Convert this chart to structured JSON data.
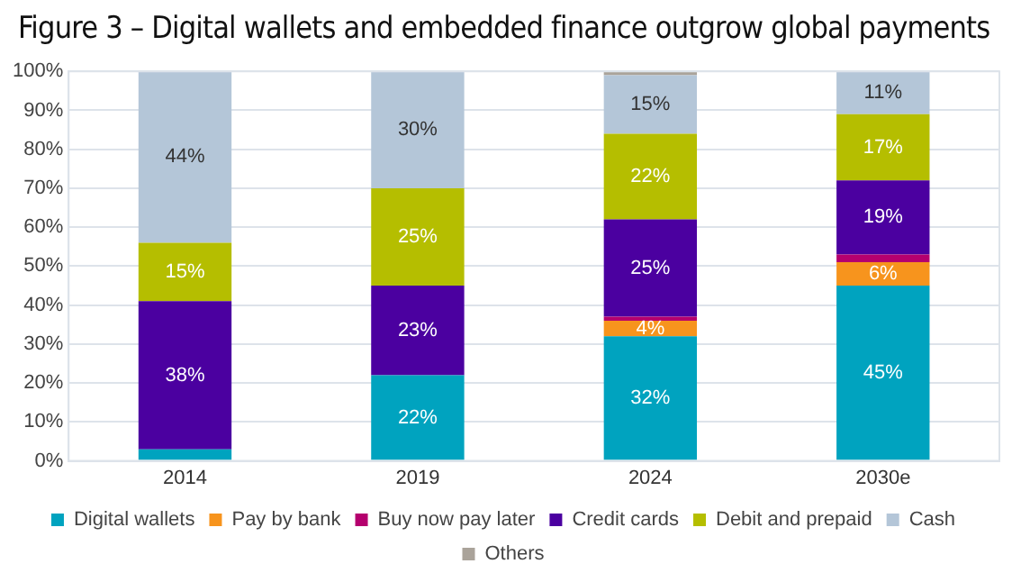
{
  "chart_data": {
    "type": "bar",
    "stacked": true,
    "title": "Figure 3 – Digital wallets and embedded finance outgrow global payments",
    "categories": [
      "2014",
      "2019",
      "2024",
      "2030e"
    ],
    "series": [
      {
        "name": "Digital wallets",
        "color": "#00a3bf",
        "values": [
          3,
          22,
          32,
          45
        ],
        "value_labels": [
          null,
          "22%",
          "32%",
          "45%"
        ]
      },
      {
        "name": "Pay by bank",
        "color": "#f7941d",
        "values": [
          0,
          0,
          4,
          6
        ],
        "value_labels": [
          null,
          null,
          "4%",
          "6%"
        ]
      },
      {
        "name": "Buy now pay later",
        "color": "#b5006e",
        "values": [
          0,
          0,
          1,
          2
        ],
        "value_labels": [
          null,
          null,
          null,
          null
        ]
      },
      {
        "name": "Credit cards",
        "color": "#4b00a0",
        "values": [
          38,
          23,
          25,
          19
        ],
        "value_labels": [
          "38%",
          "23%",
          "25%",
          "19%"
        ]
      },
      {
        "name": "Debit and prepaid",
        "color": "#b5be00",
        "values": [
          15,
          25,
          22,
          17
        ],
        "value_labels": [
          "15%",
          "25%",
          "22%",
          "17%"
        ]
      },
      {
        "name": "Cash",
        "color": "#b4c6d8",
        "values": [
          44,
          30,
          15,
          11
        ],
        "value_labels": [
          "44%",
          "30%",
          "15%",
          "11%"
        ]
      },
      {
        "name": "Others",
        "color": "#aaa39a",
        "values": [
          0,
          0,
          1,
          0
        ],
        "value_labels": [
          null,
          null,
          null,
          null
        ]
      }
    ],
    "ylim": [
      0,
      100
    ],
    "yticks": [
      {
        "value": 0,
        "label": "0%"
      },
      {
        "value": 10,
        "label": "10%"
      },
      {
        "value": 20,
        "label": "20%"
      },
      {
        "value": 30,
        "label": "30%"
      },
      {
        "value": 40,
        "label": "40%"
      },
      {
        "value": 50,
        "label": "50%"
      },
      {
        "value": 60,
        "label": "60%"
      },
      {
        "value": 70,
        "label": "70%"
      },
      {
        "value": 80,
        "label": "80%"
      },
      {
        "value": 90,
        "label": "90%"
      },
      {
        "value": 100,
        "label": "100%"
      }
    ],
    "grid": "y",
    "legend": "bottom"
  }
}
